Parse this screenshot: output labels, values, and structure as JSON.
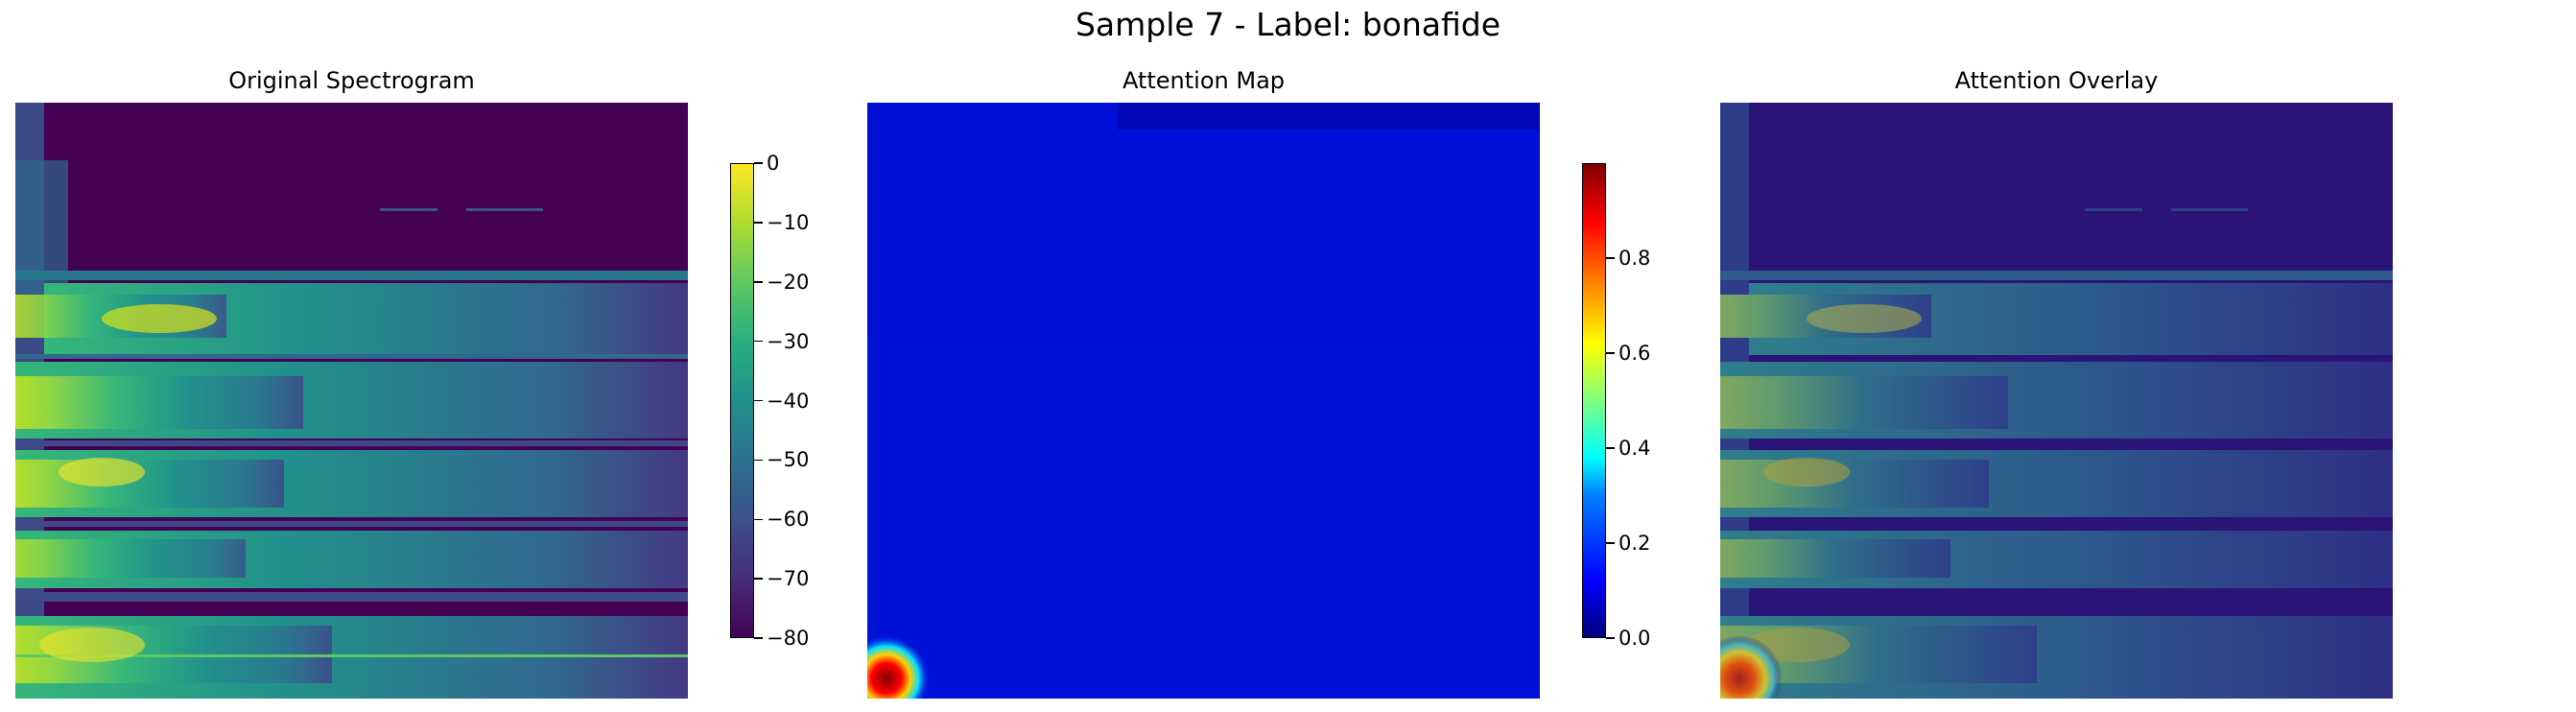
{
  "suptitle": "Sample 7 - Label: bonafide",
  "chart_data": [
    {
      "type": "heatmap",
      "title": "Original Spectrogram",
      "colormap": "viridis",
      "axes": "off",
      "colorbar": {
        "range": [
          -80,
          0
        ],
        "ticks": [
          {
            "value": 0,
            "label": "0"
          },
          {
            "value": -10,
            "label": "−10"
          },
          {
            "value": -20,
            "label": "−20"
          },
          {
            "value": -30,
            "label": "−30"
          },
          {
            "value": -40,
            "label": "−40"
          },
          {
            "value": -50,
            "label": "−50"
          },
          {
            "value": -60,
            "label": "−60"
          },
          {
            "value": -70,
            "label": "−70"
          },
          {
            "value": -80,
            "label": "−80"
          }
        ]
      }
    },
    {
      "type": "heatmap",
      "title": "Attention Map",
      "colormap": "jet",
      "axes": "off",
      "colorbar": {
        "range": [
          0,
          1
        ],
        "ticks": [
          {
            "value": 0.0,
            "label": "0.0"
          },
          {
            "value": 0.2,
            "label": "0.2"
          },
          {
            "value": 0.4,
            "label": "0.4"
          },
          {
            "value": 0.6,
            "label": "0.6"
          },
          {
            "value": 0.8,
            "label": "0.8"
          }
        ]
      }
    },
    {
      "type": "heatmap",
      "title": "Attention Overlay",
      "colormap": "viridis + jet overlay",
      "axes": "off"
    }
  ]
}
